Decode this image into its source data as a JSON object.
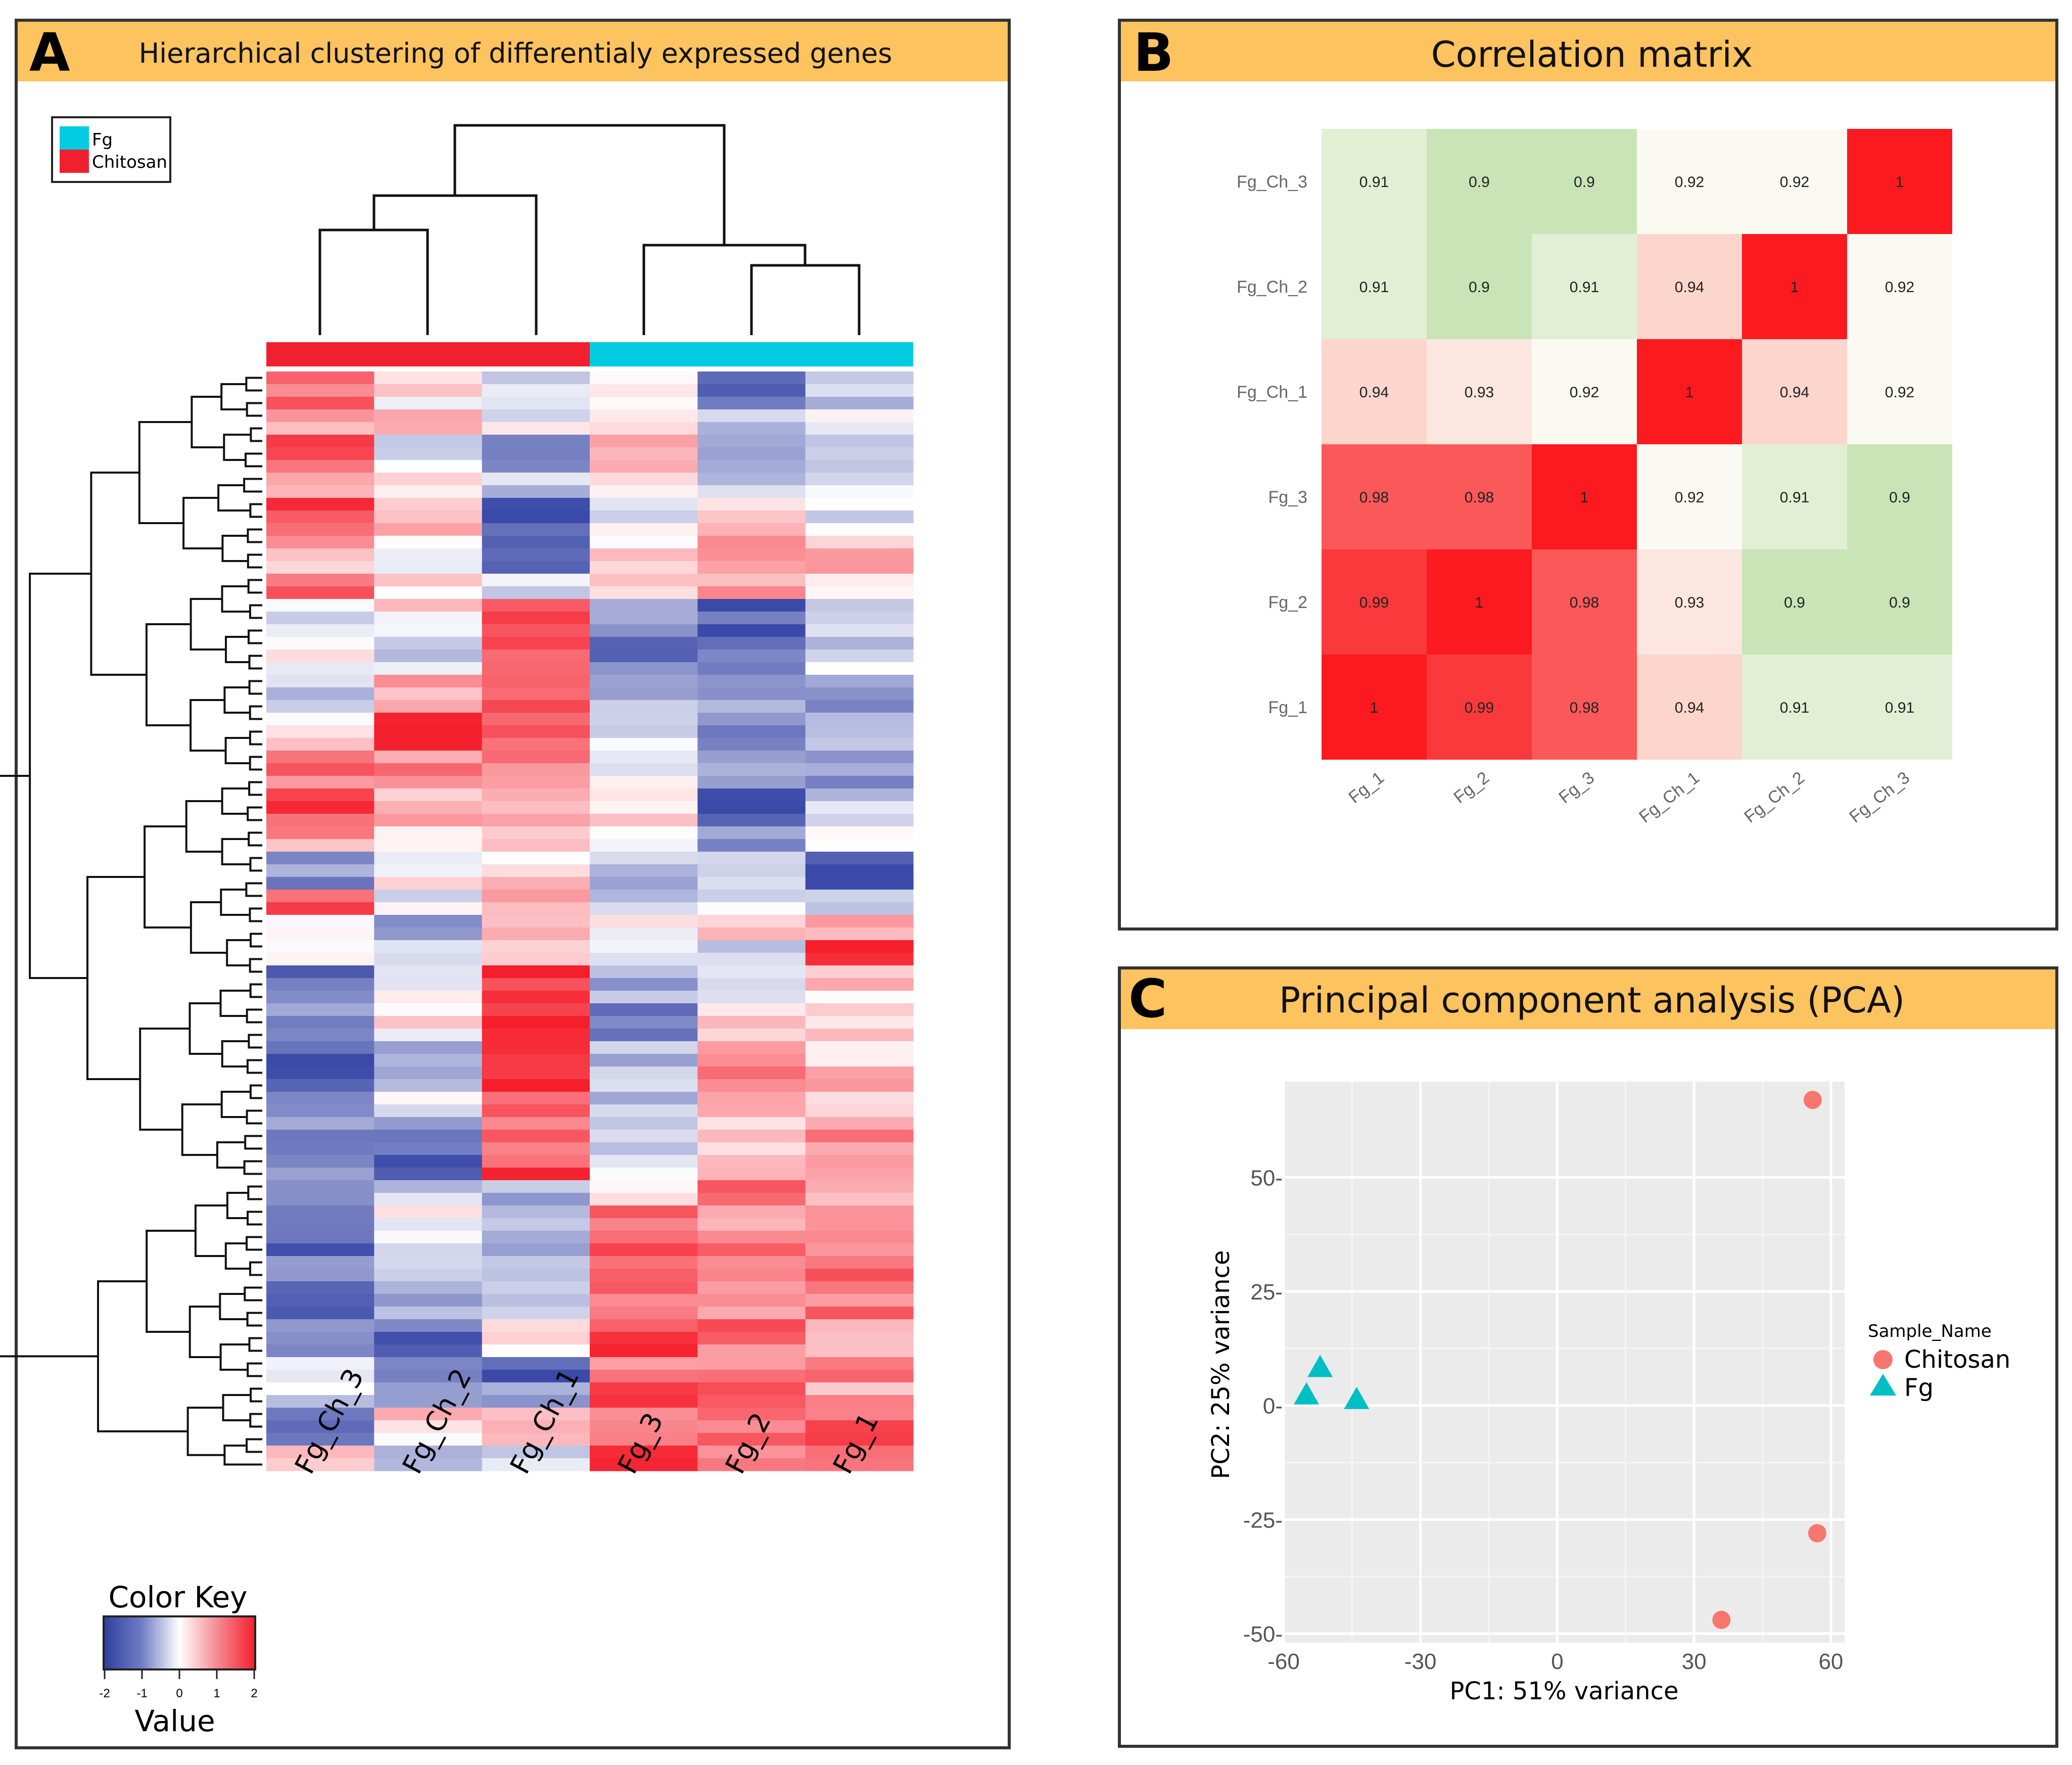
{
  "colors": {
    "header_bg": "#fcc35e",
    "panel_border": "#333333",
    "fg_group": "#00cbe0",
    "chitosan_group": "#f0202e",
    "heat_low": "#3b4aa8",
    "heat_mid": "#ffffff",
    "heat_high": "#f51e2b",
    "corr_low": "#c9e4b6",
    "corr_mid": "#fafaf2",
    "corr_high": "#fa1a1f",
    "pca_bg": "#ebebeb",
    "pca_chitosan": "#f8766d",
    "pca_fg": "#00bfc4"
  },
  "panels": {
    "a": {
      "letter": "A",
      "title": "Hierarchical clustering of differentialy expressed genes",
      "legend": [
        {
          "label": "Fg",
          "color": "#00cbe0"
        },
        {
          "label": "Chitosan",
          "color": "#f0202e"
        }
      ],
      "color_key": {
        "title": "Color Key",
        "value_label": "Value",
        "ticks": [
          "-2",
          "-1",
          "0",
          "1",
          "2"
        ]
      }
    },
    "b": {
      "letter": "B",
      "title": "Correlation matrix"
    },
    "c": {
      "letter": "C",
      "title": "Principal component analysis (PCA)"
    }
  },
  "chart_data": [
    {
      "type": "heatmap",
      "title": "Hierarchical clustering of differentialy expressed genes",
      "columns": [
        "Fg_Ch_3",
        "Fg_Ch_2",
        "Fg_Ch_1",
        "Fg_3",
        "Fg_2",
        "Fg_1"
      ],
      "column_groups": [
        "Chitosan",
        "Chitosan",
        "Chitosan",
        "Fg",
        "Fg",
        "Fg"
      ],
      "column_dendrogram": "((Fg_Ch_3,Fg_Ch_2),Fg_Ch_1),(Fg_3,(Fg_2,Fg_1))",
      "value_range": [
        -2,
        2
      ],
      "row_blocks": [
        {
          "rows": 3,
          "values": [
            1.4,
            0.2,
            -0.3,
            0.3,
            -1.6,
            -0.6
          ]
        },
        {
          "rows": 2,
          "values": [
            0.9,
            0.8,
            -0.2,
            0.6,
            -0.8,
            -0.3
          ]
        },
        {
          "rows": 3,
          "values": [
            1.6,
            -0.4,
            -1.1,
            0.4,
            -0.9,
            -0.4
          ]
        },
        {
          "rows": 2,
          "values": [
            0.7,
            0.5,
            -0.5,
            0.2,
            -0.5,
            -0.2
          ]
        },
        {
          "rows": 3,
          "values": [
            1.5,
            0.6,
            -1.9,
            -0.3,
            0.3,
            -0.3
          ]
        },
        {
          "rows": 3,
          "values": [
            0.8,
            -0.1,
            -1.8,
            0.4,
            1.2,
            0.5
          ]
        },
        {
          "rows": 2,
          "values": [
            1.2,
            0.2,
            -0.2,
            0.6,
            0.9,
            -0.1
          ]
        },
        {
          "rows": 3,
          "values": [
            -0.2,
            0.3,
            1.7,
            -1.2,
            -1.7,
            -0.2
          ]
        },
        {
          "rows": 3,
          "values": [
            0.2,
            -0.4,
            1.4,
            -1.4,
            -1.3,
            -0.4
          ]
        },
        {
          "rows": 3,
          "values": [
            -0.5,
            0.9,
            1.6,
            -0.9,
            -0.8,
            -1.3
          ]
        },
        {
          "rows": 3,
          "values": [
            0.3,
            1.6,
            1.2,
            -0.5,
            -1.5,
            -0.9
          ]
        },
        {
          "rows": 3,
          "values": [
            1.3,
            1.1,
            0.9,
            -0.3,
            -1.2,
            -1.1
          ]
        },
        {
          "rows": 3,
          "values": [
            1.5,
            0.7,
            1.0,
            0.2,
            -1.8,
            -0.4
          ]
        },
        {
          "rows": 2,
          "values": [
            0.9,
            0.4,
            0.6,
            0.1,
            -1.3,
            0.0
          ]
        },
        {
          "rows": 3,
          "values": [
            -1.2,
            0.2,
            0.4,
            -0.6,
            -0.4,
            -1.8
          ]
        },
        {
          "rows": 2,
          "values": [
            1.4,
            -0.3,
            0.7,
            -0.8,
            -0.3,
            -0.6
          ]
        },
        {
          "rows": 2,
          "values": [
            0.3,
            -1.0,
            0.9,
            0.1,
            0.3,
            0.5
          ]
        },
        {
          "rows": 2,
          "values": [
            -0.3,
            -0.5,
            0.6,
            -0.2,
            -0.4,
            1.8
          ]
        },
        {
          "rows": 3,
          "values": [
            -1.5,
            -0.2,
            1.9,
            -0.9,
            -0.3,
            0.4
          ]
        },
        {
          "rows": 3,
          "values": [
            -1.3,
            0.1,
            1.9,
            -1.4,
            0.6,
            0.6
          ]
        },
        {
          "rows": 3,
          "values": [
            -1.6,
            -0.8,
            1.8,
            -0.6,
            0.9,
            0.5
          ]
        },
        {
          "rows": 3,
          "values": [
            -1.4,
            -0.3,
            1.7,
            -0.8,
            0.7,
            0.7
          ]
        },
        {
          "rows": 3,
          "values": [
            -1.1,
            -1.3,
            1.5,
            -0.4,
            0.6,
            0.9
          ]
        },
        {
          "rows": 2,
          "values": [
            -1.0,
            -1.8,
            1.6,
            -0.2,
            0.8,
            0.6
          ]
        },
        {
          "rows": 2,
          "values": [
            -1.2,
            -0.6,
            -0.8,
            0.3,
            1.4,
            0.8
          ]
        },
        {
          "rows": 3,
          "values": [
            -1.7,
            0.1,
            -0.5,
            1.3,
            1.1,
            1.0
          ]
        },
        {
          "rows": 3,
          "values": [
            -1.5,
            -0.7,
            -1.0,
            1.5,
            1.2,
            1.3
          ]
        },
        {
          "rows": 3,
          "values": [
            -1.4,
            -1.1,
            -0.6,
            1.4,
            1.0,
            1.1
          ]
        },
        {
          "rows": 3,
          "values": [
            -0.9,
            -1.5,
            0.2,
            1.5,
            1.3,
            1.0
          ]
        },
        {
          "rows": 2,
          "values": [
            0.1,
            -1.4,
            -1.7,
            1.2,
            1.1,
            1.2
          ]
        },
        {
          "rows": 2,
          "values": [
            -0.4,
            -0.9,
            -1.2,
            1.6,
            1.4,
            0.9
          ]
        },
        {
          "rows": 3,
          "values": [
            -1.9,
            0.4,
            0.8,
            1.3,
            1.2,
            1.3
          ]
        },
        {
          "rows": 2,
          "values": [
            0.4,
            -0.6,
            -0.5,
            1.7,
            0.9,
            1.0
          ]
        }
      ]
    },
    {
      "type": "heatmap",
      "title": "Correlation matrix",
      "x_labels": [
        "Fg_1",
        "Fg_2",
        "Fg_3",
        "Fg_Ch_1",
        "Fg_Ch_2",
        "Fg_Ch_3"
      ],
      "y_labels": [
        "Fg_3",
        "Fg_2",
        "Fg_1",
        "Fg_Ch_1",
        "Fg_Ch_2",
        "Fg_Ch_3"
      ],
      "y_labels_top_to_bottom": [
        "Fg_Ch_3",
        "Fg_Ch_2",
        "Fg_Ch_1",
        "Fg_3",
        "Fg_2",
        "Fg_1"
      ],
      "matrix_top_to_bottom": [
        [
          0.91,
          0.9,
          0.9,
          0.92,
          0.92,
          1
        ],
        [
          0.91,
          0.9,
          0.91,
          0.94,
          1,
          0.92
        ],
        [
          0.94,
          0.93,
          0.92,
          1,
          0.94,
          0.92
        ],
        [
          0.98,
          0.98,
          1,
          0.92,
          0.91,
          0.9
        ],
        [
          0.99,
          1,
          0.98,
          0.93,
          0.9,
          0.9
        ],
        [
          1,
          0.99,
          0.98,
          0.94,
          0.91,
          0.91
        ]
      ],
      "value_range": [
        0.9,
        1
      ]
    },
    {
      "type": "scatter",
      "title": "Principal component analysis (PCA)",
      "xlabel": "PC1: 51% variance",
      "ylabel": "PC2: 25% variance",
      "xlim": [
        -60,
        63
      ],
      "ylim": [
        -52,
        71
      ],
      "x_ticks": [
        -60,
        -30,
        0,
        30,
        60
      ],
      "y_ticks": [
        50,
        25,
        0,
        -25,
        -50
      ],
      "x_tick_labels": [
        "-60",
        "-30",
        "0",
        "30",
        "60"
      ],
      "y_tick_labels": [
        "50-",
        "25-",
        "0-",
        "-25-",
        "-50-"
      ],
      "legend_title": "Sample_Name",
      "series": [
        {
          "name": "Chitosan",
          "shape": "circle",
          "color": "#f8766d",
          "points": [
            {
              "x": 56,
              "y": 67
            },
            {
              "x": 57,
              "y": -28
            },
            {
              "x": 36,
              "y": -47
            }
          ]
        },
        {
          "name": "Fg",
          "shape": "triangle",
          "color": "#00bfc4",
          "points": [
            {
              "x": -52,
              "y": 8
            },
            {
              "x": -55,
              "y": 2
            },
            {
              "x": -44,
              "y": 1
            }
          ]
        }
      ]
    }
  ]
}
